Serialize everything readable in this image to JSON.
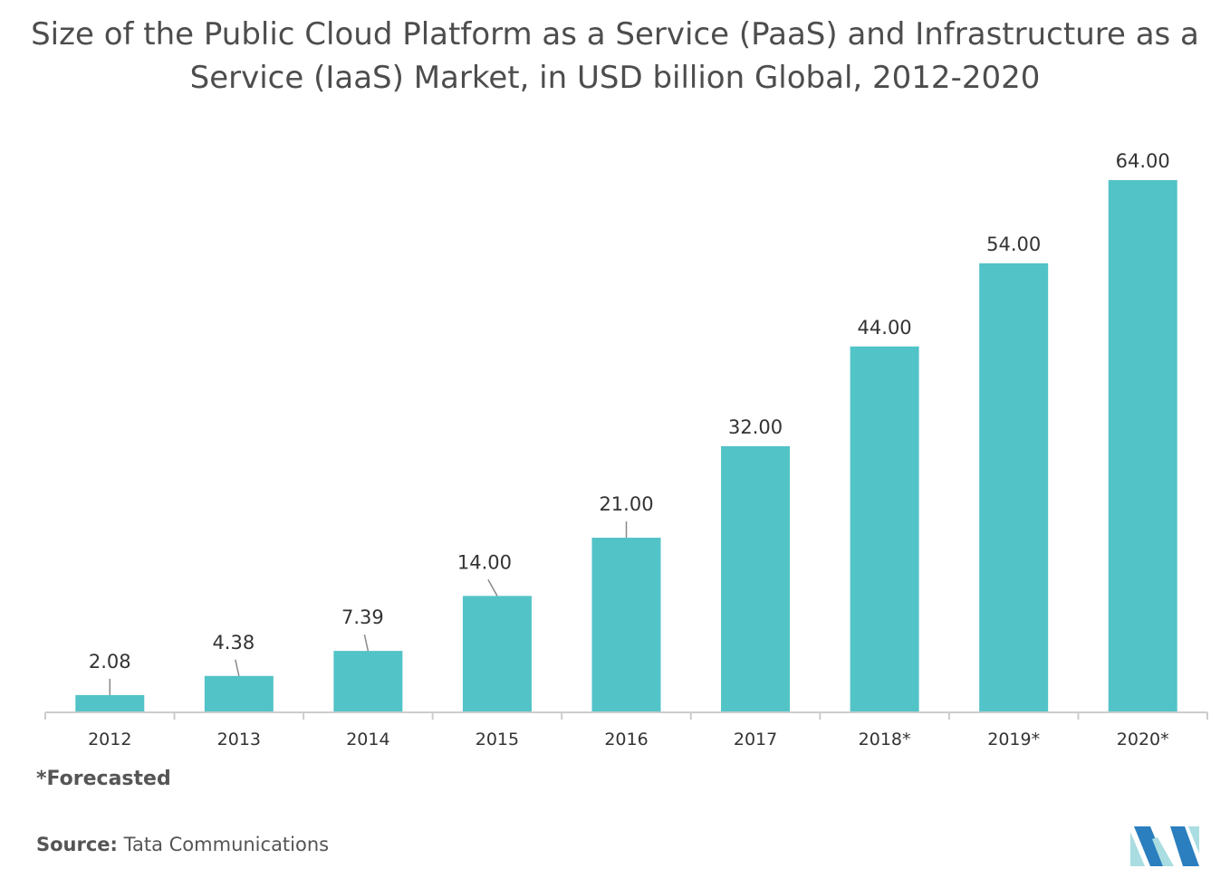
{
  "chart_data": {
    "type": "bar",
    "title": "Size of the Public Cloud Platform as a Service (PaaS) and Infrastructure as a Service (IaaS) Market, in USD billion Global, 2012-2020",
    "categories": [
      "2012",
      "2013",
      "2014",
      "2015",
      "2016",
      "2017",
      "2018*",
      "2019*",
      "2020*"
    ],
    "values": [
      2.08,
      4.38,
      7.39,
      14.0,
      21.0,
      32.0,
      44.0,
      54.0,
      64.0
    ],
    "data_labels": [
      "2.08",
      "4.38",
      "7.39",
      "14.00",
      "21.00",
      "32.00",
      "44.00",
      "54.00",
      "64.00"
    ],
    "xlabel": "",
    "ylabel": "",
    "ylim": [
      0,
      64
    ],
    "grid": false,
    "legend": "none",
    "bar_color": "#52c3c7"
  },
  "footnote": "*Forecasted",
  "source": {
    "label": "Source:",
    "text": "Tata Communications"
  },
  "colors": {
    "title": "#4d4d4d",
    "axis": "#cccccc",
    "logo_light": "#a9dde1",
    "logo_dark": "#2b7fbf"
  }
}
